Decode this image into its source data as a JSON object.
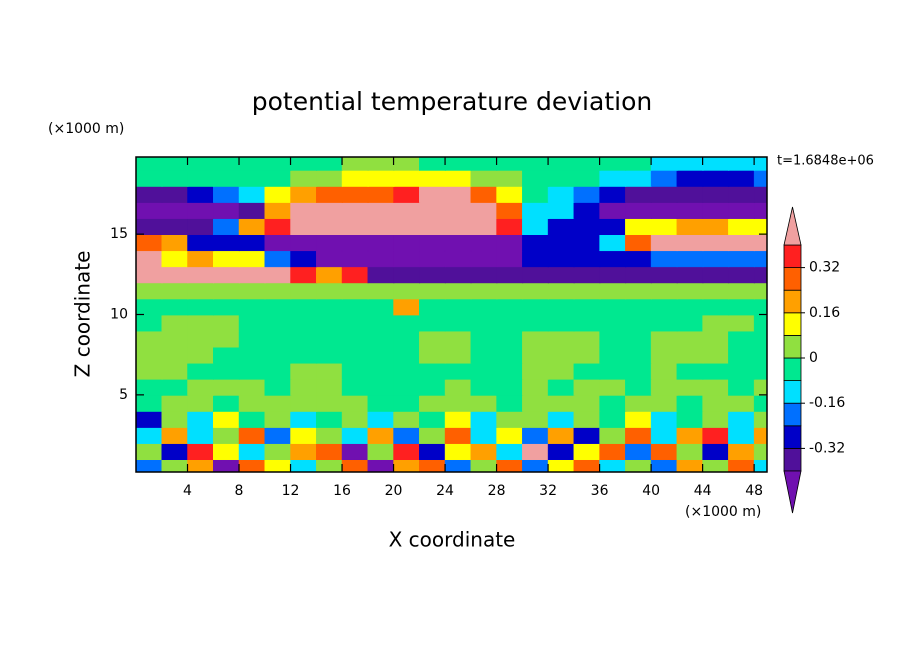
{
  "chart_data": {
    "type": "contour",
    "title": "potential temperature deviation",
    "x_label": "X coordinate",
    "y_label": "Z coordinate",
    "x_unit_label": "(×1000 m)",
    "y_unit_label": "(×1000 m)",
    "time_label": "t=1.6848e+06",
    "xlim": [
      0,
      49
    ],
    "ylim": [
      0.2,
      19.8
    ],
    "xticks": [
      4,
      8,
      12,
      16,
      20,
      24,
      28,
      32,
      36,
      40,
      44,
      48
    ],
    "yticks": [
      5,
      10,
      15
    ],
    "x": [
      1,
      3,
      5,
      7,
      9,
      11,
      13,
      15,
      17,
      19,
      21,
      23,
      25,
      27,
      29,
      31,
      33,
      35,
      37,
      39,
      41,
      43,
      45,
      47,
      49
    ],
    "y": [
      0.5,
      1.5,
      2.5,
      3.5,
      4.5,
      5.5,
      6.5,
      7.5,
      8.5,
      9.5,
      10.5,
      11.5,
      12.5,
      13.5,
      14.5,
      15.5,
      16.5,
      17.5,
      18.5,
      19.5
    ],
    "values": [
      [
        -0.2,
        0.05,
        0.2,
        -0.45,
        0.3,
        0.1,
        -0.1,
        0.05,
        0.25,
        -0.45,
        0.2,
        0.3,
        -0.2,
        0.05,
        0.25,
        -0.2,
        0.1,
        0.3,
        -0.1,
        0.05,
        -0.2,
        0.2,
        0.05,
        0.3,
        -0.1
      ],
      [
        0.05,
        -0.3,
        0.35,
        0.1,
        -0.1,
        0.05,
        0.2,
        0.3,
        -0.45,
        0.05,
        0.35,
        -0.25,
        0.1,
        0.2,
        -0.1,
        0.45,
        -0.3,
        0.1,
        0.25,
        -0.2,
        0.3,
        0.05,
        -0.3,
        0.2,
        0.05
      ],
      [
        -0.15,
        0.2,
        -0.1,
        0.05,
        0.3,
        -0.2,
        0.1,
        0.05,
        -0.1,
        0.2,
        -0.2,
        0.05,
        0.3,
        -0.1,
        0.1,
        -0.2,
        0.2,
        -0.25,
        0.05,
        0.3,
        -0.1,
        0.2,
        0.35,
        -0.1,
        0.2
      ],
      [
        -0.25,
        0.05,
        -0.1,
        0.1,
        -0.05,
        0.05,
        -0.1,
        -0.05,
        0.05,
        -0.1,
        0.02,
        -0.05,
        0.1,
        -0.1,
        0.05,
        0.02,
        -0.1,
        0.05,
        -0.05,
        0.1,
        -0.1,
        -0.05,
        0.05,
        -0.12,
        0.05
      ],
      [
        -0.03,
        0.03,
        0.03,
        -0.03,
        0.03,
        0.03,
        0.03,
        0.03,
        0.03,
        -0.03,
        -0.03,
        0.03,
        0.03,
        0.03,
        -0.03,
        0.03,
        0.03,
        0.03,
        -0.03,
        0.03,
        0.03,
        -0.03,
        0.03,
        0.03,
        -0.03
      ],
      [
        -0.03,
        -0.03,
        0.03,
        0.03,
        0.03,
        -0.03,
        0.03,
        0.03,
        -0.03,
        -0.03,
        -0.03,
        -0.03,
        0.03,
        -0.03,
        -0.03,
        0.03,
        -0.03,
        0.03,
        0.03,
        -0.03,
        0.03,
        0.03,
        0.03,
        -0.03,
        0.03
      ],
      [
        0.03,
        0.03,
        -0.03,
        -0.03,
        -0.03,
        -0.03,
        0.03,
        0.03,
        -0.03,
        -0.03,
        -0.03,
        -0.03,
        -0.03,
        -0.03,
        -0.03,
        0.03,
        0.03,
        -0.03,
        -0.03,
        -0.03,
        0.03,
        -0.03,
        -0.03,
        -0.03,
        -0.03
      ],
      [
        0.03,
        0.03,
        0.03,
        -0.03,
        -0.03,
        -0.03,
        -0.03,
        -0.03,
        -0.03,
        -0.03,
        -0.03,
        0.03,
        0.03,
        -0.03,
        -0.03,
        0.03,
        0.03,
        0.03,
        -0.03,
        -0.03,
        0.03,
        0.03,
        0.03,
        -0.03,
        -0.03
      ],
      [
        0.03,
        0.03,
        0.03,
        0.03,
        -0.03,
        -0.03,
        -0.03,
        -0.03,
        -0.03,
        -0.03,
        -0.03,
        0.03,
        0.03,
        -0.03,
        -0.03,
        0.03,
        0.03,
        0.03,
        -0.03,
        -0.03,
        0.03,
        0.03,
        0.03,
        -0.03,
        -0.03
      ],
      [
        -0.03,
        0.03,
        0.03,
        0.03,
        -0.03,
        -0.03,
        -0.03,
        -0.03,
        -0.03,
        -0.03,
        -0.03,
        -0.03,
        -0.03,
        -0.03,
        -0.03,
        -0.03,
        -0.03,
        -0.03,
        -0.03,
        -0.03,
        -0.03,
        -0.03,
        0.03,
        0.03,
        -0.03
      ],
      [
        -0.03,
        -0.03,
        -0.03,
        -0.03,
        -0.03,
        -0.03,
        -0.03,
        -0.03,
        -0.03,
        -0.03,
        0.2,
        -0.03,
        -0.03,
        -0.03,
        -0.03,
        -0.03,
        -0.03,
        -0.03,
        -0.03,
        -0.03,
        -0.03,
        -0.03,
        -0.03,
        -0.03,
        -0.03
      ],
      [
        0.03,
        0.03,
        0.03,
        0.03,
        0.03,
        0.03,
        0.03,
        0.03,
        0.03,
        0.03,
        0.03,
        0.03,
        0.03,
        0.03,
        0.03,
        0.03,
        0.03,
        0.03,
        0.03,
        0.03,
        0.03,
        0.03,
        0.03,
        0.03,
        0.03
      ],
      [
        0.45,
        0.45,
        0.45,
        0.45,
        0.45,
        0.45,
        0.35,
        0.2,
        0.35,
        -0.35,
        -0.35,
        -0.35,
        -0.35,
        -0.35,
        -0.35,
        -0.35,
        -0.35,
        -0.35,
        -0.35,
        -0.35,
        -0.35,
        -0.35,
        -0.35,
        -0.35,
        -0.35
      ],
      [
        0.45,
        0.15,
        0.2,
        0.15,
        0.1,
        -0.2,
        -0.3,
        -0.42,
        -0.42,
        -0.42,
        -0.42,
        -0.42,
        -0.42,
        -0.42,
        -0.42,
        -0.3,
        -0.3,
        -0.3,
        -0.3,
        -0.28,
        -0.2,
        -0.2,
        -0.2,
        -0.2,
        -0.2
      ],
      [
        0.25,
        0.2,
        -0.3,
        -0.3,
        -0.3,
        -0.45,
        -0.45,
        -0.45,
        -0.45,
        -0.45,
        -0.45,
        -0.45,
        -0.45,
        -0.45,
        -0.45,
        -0.3,
        -0.3,
        -0.3,
        -0.1,
        0.3,
        0.45,
        0.45,
        0.45,
        0.45,
        0.45
      ],
      [
        -0.38,
        -0.38,
        -0.38,
        -0.2,
        0.2,
        0.35,
        0.45,
        0.45,
        0.45,
        0.45,
        0.45,
        0.45,
        0.45,
        0.45,
        0.35,
        -0.1,
        -0.3,
        -0.3,
        -0.3,
        0.1,
        0.15,
        0.2,
        0.2,
        0.15,
        0.1
      ],
      [
        -0.45,
        -0.45,
        -0.45,
        -0.45,
        -0.38,
        0.2,
        0.45,
        0.45,
        0.45,
        0.45,
        0.45,
        0.45,
        0.45,
        0.45,
        0.25,
        -0.1,
        -0.15,
        -0.3,
        -0.45,
        -0.45,
        -0.45,
        -0.45,
        -0.45,
        -0.45,
        -0.45
      ],
      [
        -0.38,
        -0.38,
        -0.3,
        -0.2,
        -0.1,
        0.1,
        0.2,
        0.3,
        0.3,
        0.3,
        0.35,
        0.45,
        0.45,
        0.3,
        0.1,
        -0.05,
        -0.1,
        -0.2,
        -0.3,
        -0.38,
        -0.38,
        -0.38,
        -0.38,
        -0.38,
        -0.38
      ],
      [
        -0.05,
        -0.05,
        -0.05,
        -0.05,
        -0.05,
        -0.05,
        0.05,
        0.05,
        0.1,
        0.15,
        0.1,
        0.1,
        0.1,
        0.05,
        0.05,
        -0.05,
        -0.05,
        -0.05,
        -0.1,
        -0.15,
        -0.2,
        -0.25,
        -0.3,
        -0.25,
        -0.2
      ],
      [
        -0.05,
        -0.05,
        -0.05,
        -0.05,
        -0.05,
        -0.05,
        -0.05,
        -0.05,
        0.03,
        0.03,
        0.03,
        -0.05,
        -0.05,
        -0.05,
        -0.05,
        -0.05,
        -0.05,
        -0.05,
        -0.05,
        -0.05,
        -0.1,
        -0.1,
        -0.15,
        -0.1,
        -0.1
      ]
    ],
    "levels": [
      -0.4,
      -0.32,
      -0.24,
      -0.16,
      -0.08,
      0,
      0.08,
      0.16,
      0.24,
      0.32,
      0.4
    ],
    "colors": [
      "#7010b0",
      "#50109a",
      "#0000c8",
      "#0070ff",
      "#00e0ff",
      "#00e890",
      "#90e040",
      "#ffff00",
      "#ffa000",
      "#ff6000",
      "#ff2020",
      "#f0a0a0"
    ],
    "colorbar_ticks": [
      0.32,
      0.16,
      0,
      -0.16,
      -0.32
    ]
  }
}
